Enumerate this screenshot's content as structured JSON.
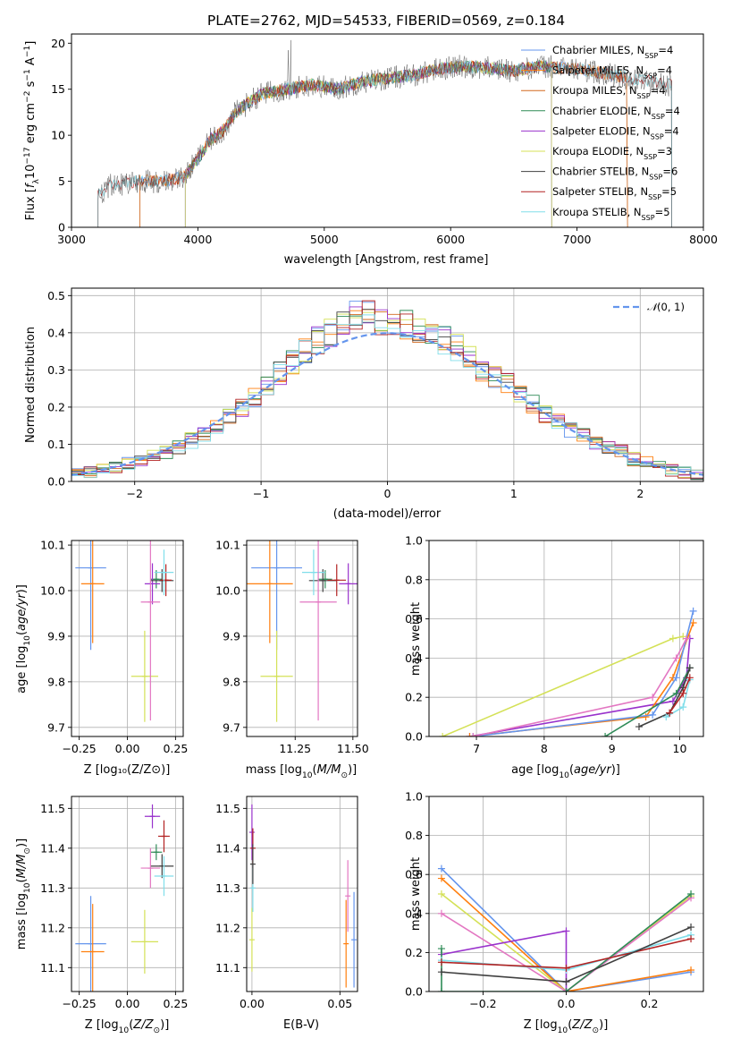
{
  "colors": {
    "Chabrier MILES": "#6495ed",
    "Salpeter MILES": "#ff7f0e",
    "Kroupa MILES": "#d2691e",
    "Chabrier ELODIE": "#2e8b57",
    "Salpeter ELODIE": "#9932cc",
    "Kroupa ELODIE": "#d4e157",
    "Chabrier STELIB": "#404040",
    "Salpeter STELIB": "#b22222",
    "Kroupa STELIB": "#80deea",
    "normal": "#6495ed",
    "pink": "#e377c2"
  },
  "chart_data": [
    {
      "type": "line",
      "title": "PLATE=2762, MJD=54533, FIBERID=0569, z=0.184",
      "xlabel": "wavelength [Angstrom, rest frame]",
      "ylabel": "Flux [fλ10⁻¹⁷ erg cm⁻² s⁻¹ A⁻¹]",
      "xlim": [
        3000,
        8000
      ],
      "ylim": [
        0,
        21
      ],
      "xticks": [
        3000,
        4000,
        5000,
        6000,
        7000,
        8000
      ],
      "yticks": [
        0,
        5,
        10,
        15,
        20
      ],
      "legend_position": "right",
      "legend": [
        "Chabrier MILES, N_SSP=4",
        "Salpeter MILES, N_SSP=4",
        "Kroupa MILES, N_SSP=4",
        "Chabrier ELODIE, N_SSP=4",
        "Salpeter ELODIE, N_SSP=4",
        "Kroupa ELODIE, N_SSP=3",
        "Chabrier STELIB, N_SSP=6",
        "Salpeter STELIB, N_SSP=5",
        "Kroupa STELIB, N_SSP=5"
      ],
      "continuum": {
        "x": [
          3210,
          3300,
          3500,
          3700,
          3900,
          4000,
          4100,
          4200,
          4300,
          4500,
          4700,
          4900,
          5100,
          5300,
          5500,
          5700,
          5900,
          6100,
          6300,
          6500,
          6700,
          6900,
          7100,
          7300,
          7500,
          7700
        ],
        "y": [
          3.5,
          4.5,
          5.0,
          5.0,
          5.5,
          7.5,
          9.5,
          10.5,
          12.5,
          14.5,
          15.0,
          15.5,
          15.0,
          15.8,
          16.2,
          16.5,
          17.2,
          17.5,
          17.3,
          17.0,
          17.5,
          17.3,
          17.0,
          16.5,
          16.0,
          15.5
        ]
      },
      "series_ranges": [
        {
          "name": "Chabrier MILES",
          "x_start": 3540,
          "x_end": 7400
        },
        {
          "name": "Salpeter MILES",
          "x_start": 3540,
          "x_end": 7400
        },
        {
          "name": "Kroupa MILES",
          "x_start": 3540,
          "x_end": 7400
        },
        {
          "name": "Chabrier ELODIE",
          "x_start": 3900,
          "x_end": 6800
        },
        {
          "name": "Salpeter ELODIE",
          "x_start": 3900,
          "x_end": 6800
        },
        {
          "name": "Kroupa ELODIE",
          "x_start": 3900,
          "x_end": 6800
        },
        {
          "name": "Chabrier STELIB",
          "x_start": 3210,
          "x_end": 7750
        },
        {
          "name": "Salpeter STELIB",
          "x_start": 3210,
          "x_end": 7750
        },
        {
          "name": "Kroupa STELIB",
          "x_start": 3210,
          "x_end": 7750
        }
      ]
    },
    {
      "type": "line",
      "xlabel": "(data-model)/error",
      "ylabel": "Normed distribution",
      "xlim": [
        -2.5,
        2.5
      ],
      "ylim": [
        0,
        0.52
      ],
      "xticks": [
        -2,
        -1,
        0,
        1,
        2
      ],
      "yticks": [
        0.0,
        0.1,
        0.2,
        0.3,
        0.4,
        0.5
      ],
      "grid": true,
      "legend_position": "top-right",
      "legend": [
        "N(0,1)"
      ],
      "legend_label_main": "𝒩",
      "legend_label_args": "(0, 1)",
      "bin_edges": [
        -2.5,
        -2.4,
        -2.3,
        -2.2,
        -2.1,
        -2.0,
        -1.9,
        -1.8,
        -1.7,
        -1.6,
        -1.5,
        -1.4,
        -1.3,
        -1.2,
        -1.1,
        -1.0,
        -0.9,
        -0.8,
        -0.7,
        -0.6,
        -0.5,
        -0.4,
        -0.3,
        -0.2,
        -0.1,
        0.0,
        0.1,
        0.2,
        0.3,
        0.4,
        0.5,
        0.6,
        0.7,
        0.8,
        0.9,
        1.0,
        1.1,
        1.2,
        1.3,
        1.4,
        1.5,
        1.6,
        1.7,
        1.8,
        1.9,
        2.0,
        2.1,
        2.2,
        2.3,
        2.4,
        2.5
      ],
      "histogram_center": [
        0.02,
        0.025,
        0.035,
        0.04,
        0.05,
        0.06,
        0.07,
        0.08,
        0.09,
        0.11,
        0.13,
        0.15,
        0.17,
        0.2,
        0.23,
        0.26,
        0.29,
        0.32,
        0.35,
        0.38,
        0.4,
        0.43,
        0.45,
        0.45,
        0.43,
        0.42,
        0.42,
        0.4,
        0.39,
        0.38,
        0.36,
        0.33,
        0.3,
        0.28,
        0.26,
        0.24,
        0.21,
        0.18,
        0.16,
        0.14,
        0.12,
        0.1,
        0.09,
        0.08,
        0.06,
        0.05,
        0.04,
        0.03,
        0.025,
        0.02
      ]
    },
    {
      "type": "scatter",
      "xlabel": "Z [log₁₀(Z/Z⊙)]",
      "ylabel": "age [log₁₀(age/yr)]",
      "xlim": [
        -0.29,
        0.29
      ],
      "ylim": [
        9.68,
        10.11
      ],
      "xticks": [
        -0.25,
        0.0,
        0.25
      ],
      "xtick_labels": [
        "−0.25",
        "0.00",
        "0.25"
      ],
      "yticks": [
        9.7,
        9.8,
        9.9,
        10.0,
        10.1
      ],
      "grid": true,
      "errorbars": [
        {
          "name": "Chabrier MILES",
          "x": -0.19,
          "xerr": 0.08,
          "y": 10.05,
          "yerr": 0.18
        },
        {
          "name": "Salpeter MILES",
          "x": -0.18,
          "xerr": 0.06,
          "y": 10.015,
          "yerr": 0.13
        },
        {
          "name": "Chabrier ELODIE",
          "x": 0.15,
          "xerr": 0.03,
          "y": 10.025,
          "yerr": 0.02
        },
        {
          "name": "Salpeter ELODIE",
          "x": 0.13,
          "xerr": 0.04,
          "y": 10.015,
          "yerr": 0.045
        },
        {
          "name": "Kroupa ELODIE",
          "x": 0.09,
          "xerr": 0.07,
          "y": 9.812,
          "yerr": 0.1
        },
        {
          "name": "Chabrier STELIB",
          "x": 0.18,
          "xerr": 0.06,
          "y": 10.022,
          "yerr": 0.025
        },
        {
          "name": "Salpeter STELIB",
          "x": 0.2,
          "xerr": 0.03,
          "y": 10.023,
          "yerr": 0.035
        },
        {
          "name": "Kroupa STELIB",
          "x": 0.19,
          "xerr": 0.05,
          "y": 10.04,
          "yerr": 0.05
        },
        {
          "name": "pink",
          "x": 0.12,
          "xerr": 0.05,
          "y": 9.975,
          "yerr": 0.26
        }
      ]
    },
    {
      "type": "scatter",
      "xlabel": "mass [log₁₀(M/M⊙)]",
      "xlim": [
        11.04,
        11.52
      ],
      "ylim": [
        9.68,
        10.11
      ],
      "xticks": [
        11.25,
        11.5
      ],
      "xtick_labels": [
        "11.25",
        "11.50"
      ],
      "yticks": [
        9.7,
        9.8,
        9.9,
        10.0,
        10.1
      ],
      "grid": true,
      "errorbars": [
        {
          "name": "Chabrier MILES",
          "x": 11.17,
          "xerr": 0.11,
          "y": 10.05,
          "yerr": 0.18
        },
        {
          "name": "Salpeter MILES",
          "x": 11.14,
          "xerr": 0.1,
          "y": 10.015,
          "yerr": 0.13
        },
        {
          "name": "Chabrier ELODIE",
          "x": 11.38,
          "xerr": 0.03,
          "y": 10.025,
          "yerr": 0.02
        },
        {
          "name": "Salpeter ELODIE",
          "x": 11.48,
          "xerr": 0.04,
          "y": 10.015,
          "yerr": 0.045
        },
        {
          "name": "Kroupa ELODIE",
          "x": 11.17,
          "xerr": 0.07,
          "y": 9.812,
          "yerr": 0.1
        },
        {
          "name": "Chabrier STELIB",
          "x": 11.37,
          "xerr": 0.06,
          "y": 10.022,
          "yerr": 0.025
        },
        {
          "name": "Salpeter STELIB",
          "x": 11.43,
          "xerr": 0.04,
          "y": 10.023,
          "yerr": 0.035
        },
        {
          "name": "Kroupa STELIB",
          "x": 11.33,
          "xerr": 0.05,
          "y": 10.04,
          "yerr": 0.05
        },
        {
          "name": "pink",
          "x": 11.35,
          "xerr": 0.08,
          "y": 9.975,
          "yerr": 0.26
        }
      ]
    },
    {
      "type": "line",
      "xlabel": "age [log₁₀(age/yr)]",
      "ylabel": "mass weight",
      "xlim": [
        6.3,
        10.35
      ],
      "ylim": [
        0,
        1.0
      ],
      "xticks": [
        7,
        8,
        9,
        10
      ],
      "yticks": [
        0.0,
        0.2,
        0.4,
        0.6,
        0.8,
        1.0
      ],
      "grid": true,
      "series": [
        {
          "name": "Kroupa ELODIE",
          "x": [
            6.5,
            9.9,
            10.05
          ],
          "y": [
            0.0,
            0.5,
            0.51
          ]
        },
        {
          "name": "Salpeter ELODIE",
          "x": [
            6.9,
            9.9,
            10.1,
            10.15
          ],
          "y": [
            0.0,
            0.18,
            0.3,
            0.5
          ]
        },
        {
          "name": "Salpeter MILES",
          "x": [
            6.9,
            9.5,
            9.9,
            10.2
          ],
          "y": [
            0.0,
            0.1,
            0.3,
            0.58
          ]
        },
        {
          "name": "Chabrier MILES",
          "x": [
            6.95,
            9.6,
            9.95,
            10.2
          ],
          "y": [
            0.0,
            0.11,
            0.3,
            0.64
          ]
        },
        {
          "name": "pink",
          "x": [
            6.95,
            9.6,
            9.95,
            10.1
          ],
          "y": [
            0.0,
            0.2,
            0.4,
            0.5
          ]
        },
        {
          "name": "Chabrier ELODIE",
          "x": [
            8.9,
            9.95,
            10.15
          ],
          "y": [
            0.0,
            0.22,
            0.35
          ]
        },
        {
          "name": "Chabrier STELIB",
          "x": [
            9.4,
            9.85,
            10.05,
            10.15
          ],
          "y": [
            0.05,
            0.12,
            0.25,
            0.35
          ]
        },
        {
          "name": "Kroupa STELIB",
          "x": [
            9.8,
            10.05,
            10.15
          ],
          "y": [
            0.1,
            0.15,
            0.29
          ]
        },
        {
          "name": "Salpeter STELIB",
          "x": [
            9.85,
            10.05,
            10.15
          ],
          "y": [
            0.12,
            0.22,
            0.3
          ]
        }
      ]
    },
    {
      "type": "scatter",
      "xlabel": "Z [log₁₀(Z/Z⊙)]",
      "ylabel": "mass [log₁₀(M/M⊙)]",
      "xlim": [
        -0.29,
        0.29
      ],
      "ylim": [
        11.04,
        11.53
      ],
      "xticks": [
        -0.25,
        0.0,
        0.25
      ],
      "xtick_labels": [
        "−0.25",
        "0.00",
        "0.25"
      ],
      "yticks": [
        11.1,
        11.2,
        11.3,
        11.4,
        11.5
      ],
      "grid": true,
      "errorbars": [
        {
          "name": "Chabrier MILES",
          "x": -0.19,
          "xerr": 0.08,
          "y": 11.16,
          "yerr": 0.12
        },
        {
          "name": "Salpeter MILES",
          "x": -0.18,
          "xerr": 0.06,
          "y": 11.14,
          "yerr": 0.12
        },
        {
          "name": "Chabrier ELODIE",
          "x": 0.15,
          "xerr": 0.03,
          "y": 11.39,
          "yerr": 0.02
        },
        {
          "name": "Salpeter ELODIE",
          "x": 0.13,
          "xerr": 0.04,
          "y": 11.48,
          "yerr": 0.03
        },
        {
          "name": "Kroupa ELODIE",
          "x": 0.09,
          "xerr": 0.07,
          "y": 11.165,
          "yerr": 0.08
        },
        {
          "name": "Chabrier STELIB",
          "x": 0.18,
          "xerr": 0.06,
          "y": 11.355,
          "yerr": 0.03
        },
        {
          "name": "Salpeter STELIB",
          "x": 0.19,
          "xerr": 0.03,
          "y": 11.43,
          "yerr": 0.04
        },
        {
          "name": "Kroupa STELIB",
          "x": 0.19,
          "xerr": 0.05,
          "y": 11.33,
          "yerr": 0.05
        },
        {
          "name": "pink",
          "x": 0.12,
          "xerr": 0.05,
          "y": 11.35,
          "yerr": 0.05
        }
      ]
    },
    {
      "type": "scatter",
      "xlabel": "E(B-V)",
      "xlim": [
        -0.003,
        0.06
      ],
      "ylim": [
        11.04,
        11.53
      ],
      "xticks": [
        0.0,
        0.05
      ],
      "xtick_labels": [
        "0.00",
        "0.05"
      ],
      "yticks": [
        11.1,
        11.2,
        11.3,
        11.4,
        11.5
      ],
      "grid": true,
      "errorbars": [
        {
          "name": "Chabrier MILES",
          "x": 0.058,
          "xerr": 0.0,
          "y": 11.17,
          "yerr": 0.12
        },
        {
          "name": "Salpeter MILES",
          "x": 0.0535,
          "xerr": 0.0,
          "y": 11.16,
          "yerr": 0.11
        },
        {
          "name": "pink",
          "x": 0.0545,
          "xerr": 0.0,
          "y": 11.28,
          "yerr": 0.09
        },
        {
          "name": "Salpeter ELODIE",
          "x": 0.0,
          "xerr": 0.0,
          "y": 11.44,
          "yerr": 0.07
        },
        {
          "name": "Salpeter STELIB",
          "x": 0.0005,
          "xerr": 0.0,
          "y": 11.4,
          "yerr": 0.05
        },
        {
          "name": "Kroupa ELODIE",
          "x": 0.0,
          "xerr": 0.0,
          "y": 11.17,
          "yerr": 0.08
        },
        {
          "name": "Kroupa STELIB",
          "x": 0.0005,
          "xerr": 0.0,
          "y": 11.3,
          "yerr": 0.06
        },
        {
          "name": "Chabrier STELIB",
          "x": 0.0005,
          "xerr": 0.0,
          "y": 11.36,
          "yerr": 0.05
        }
      ]
    },
    {
      "type": "line",
      "xlabel": "Z [log₁₀(Z/Z⊙)]",
      "ylabel": "mass weight",
      "xlim": [
        -0.33,
        0.33
      ],
      "ylim": [
        0,
        1.0
      ],
      "xticks": [
        -0.2,
        0.0,
        0.2
      ],
      "xtick_labels": [
        "−0.2",
        "0.0",
        "0.2"
      ],
      "yticks": [
        0.0,
        0.2,
        0.4,
        0.6,
        0.8,
        1.0
      ],
      "grid": true,
      "series": [
        {
          "name": "Chabrier MILES",
          "x": [
            -0.3,
            0.0,
            0.3
          ],
          "y": [
            0.63,
            0.0,
            0.1
          ]
        },
        {
          "name": "Salpeter MILES",
          "x": [
            -0.3,
            0.0,
            0.3
          ],
          "y": [
            0.58,
            0.0,
            0.11
          ]
        },
        {
          "name": "Kroupa ELODIE",
          "x": [
            -0.3,
            0.0,
            0.3
          ],
          "y": [
            0.5,
            0.0,
            0.49
          ]
        },
        {
          "name": "pink",
          "x": [
            -0.3,
            0.0,
            0.3
          ],
          "y": [
            0.4,
            0.0,
            0.48
          ]
        },
        {
          "name": "Salpeter ELODIE",
          "x": [
            -0.3,
            0.0,
            0.0
          ],
          "y": [
            0.19,
            0.31,
            0.0
          ]
        },
        {
          "name": "Chabrier ELODIE",
          "x": [
            -0.3,
            -0.3,
            0.0,
            0.3
          ],
          "y": [
            0.22,
            0.0,
            0.0,
            0.5
          ]
        },
        {
          "name": "Kroupa STELIB",
          "x": [
            -0.3,
            0.0,
            0.3
          ],
          "y": [
            0.16,
            0.11,
            0.29
          ]
        },
        {
          "name": "Salpeter STELIB",
          "x": [
            -0.3,
            0.0,
            0.3
          ],
          "y": [
            0.15,
            0.12,
            0.27
          ]
        },
        {
          "name": "Chabrier STELIB",
          "x": [
            -0.3,
            0.0,
            0.3
          ],
          "y": [
            0.1,
            0.05,
            0.33
          ]
        }
      ]
    }
  ]
}
